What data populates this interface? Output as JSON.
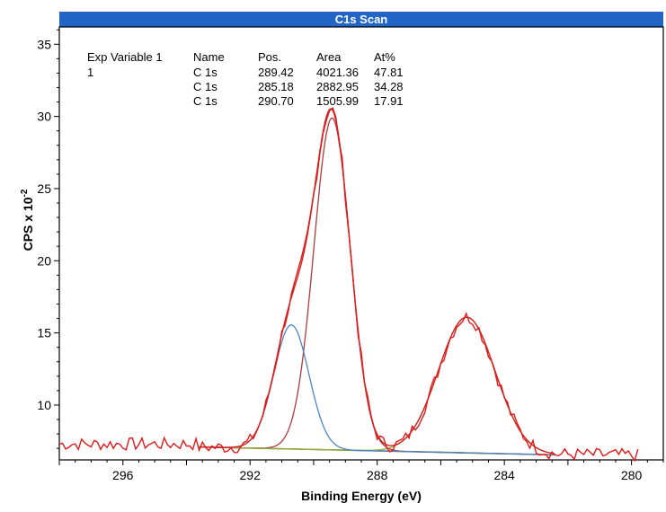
{
  "chart_data": {
    "type": "line",
    "title": "C1s Scan",
    "xlabel": "Binding Energy (eV)",
    "ylabel_main": "CPS x 10",
    "ylabel_exp": "-2",
    "xlim": [
      298.0,
      279.0
    ],
    "ylim": [
      6.2,
      36.2
    ],
    "x_ticks": [
      296,
      292,
      288,
      284,
      280
    ],
    "y_ticks": [
      10,
      15,
      20,
      25,
      30,
      35
    ],
    "table": {
      "headers": [
        "Exp Variable 1",
        "Name",
        "Pos.",
        "Area",
        "At%"
      ],
      "rows": [
        [
          "1",
          "C 1s",
          "289.42",
          "4021.36",
          "47.81"
        ],
        [
          "",
          "C 1s",
          "285.18",
          "2882.95",
          "34.28"
        ],
        [
          "",
          "C 1s",
          "290.70",
          "1505.99",
          "17.91"
        ]
      ]
    },
    "components": [
      {
        "center": 289.42,
        "height": 23.0,
        "fwhm": 1.35,
        "color": "#b03a3a"
      },
      {
        "center": 285.18,
        "height": 9.4,
        "fwhm": 2.1,
        "color": "#8fb03a"
      },
      {
        "center": 290.7,
        "height": 8.6,
        "fwhm": 1.3,
        "color": "#4a86c8"
      }
    ],
    "background": {
      "from": [
        293.6,
        7.1
      ],
      "to": [
        282.4,
        6.55
      ],
      "color": "#6b6b1e"
    },
    "raw_color": "#e01b1b",
    "envelope_color": "#d62020",
    "title_bar_color": "#2166c6"
  }
}
